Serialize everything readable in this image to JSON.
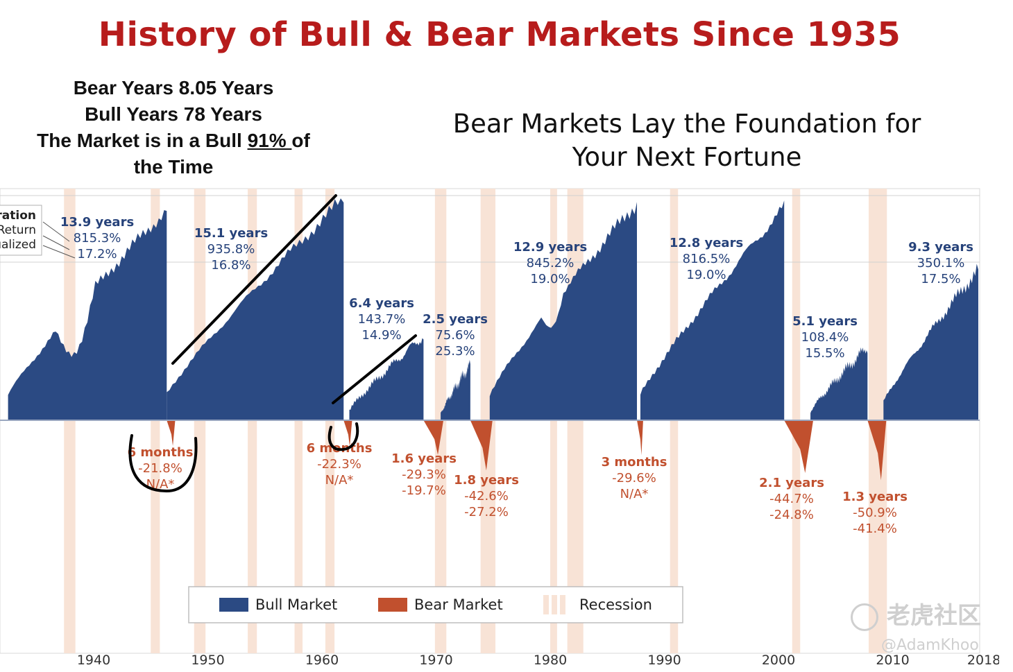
{
  "header": {
    "title": "History of Bull & Bear Markets Since 1935",
    "subtitle_line1": "Bear Markets Lay the Foundation for",
    "subtitle_line2": "Your Next Fortune"
  },
  "stats": {
    "line1": "Bear Years  8.05 Years",
    "line2": "Bull Years 78 Years",
    "line3_prefix": "The Market is in a Bull ",
    "line3_pct": "91% ",
    "line3_suffix": "of",
    "line4": "the Time"
  },
  "watermark": {
    "text": "老虎社区",
    "credit": "@AdamKhoo"
  },
  "colors": {
    "bull": "#2b4a83",
    "bear": "#c1502e",
    "recession": "#f8e3d6",
    "title": "#b71c1c"
  },
  "chart_data": {
    "type": "area",
    "x_ticks": [
      "1940",
      "1950",
      "1960",
      "1970",
      "1980",
      "1990",
      "2000",
      "2010",
      "2018"
    ],
    "key_lines": [
      "uration",
      "Return",
      "ualized"
    ],
    "legend": [
      {
        "label": "Bull Market",
        "color": "#2b4a83"
      },
      {
        "label": "Bear Market",
        "color": "#c1502e"
      },
      {
        "label": "Recession",
        "color": "#f8e3d6"
      }
    ],
    "legend_position": "bottom-center",
    "recessions": [
      [
        1937.4,
        1938.4
      ],
      [
        1945.0,
        1945.8
      ],
      [
        1948.8,
        1949.8
      ],
      [
        1953.5,
        1954.3
      ],
      [
        1957.6,
        1958.3
      ],
      [
        1960.3,
        1961.1
      ],
      [
        1969.9,
        1970.9
      ],
      [
        1973.9,
        1975.2
      ],
      [
        1980.0,
        1980.6
      ],
      [
        1981.5,
        1982.9
      ],
      [
        1990.5,
        1991.2
      ],
      [
        2001.2,
        2001.9
      ],
      [
        2007.9,
        2009.5
      ]
    ],
    "bull_markets": [
      {
        "duration": "13.9 years",
        "return": "815.3%",
        "annualized": "17.2%",
        "start": 1932.5,
        "end": 1946.4,
        "peak": 0.95
      },
      {
        "duration": "15.1 years",
        "return": "935.8%",
        "annualized": "16.8%",
        "start": 1946.4,
        "end": 1961.9,
        "peak": 1.0
      },
      {
        "duration": "6.4 years",
        "return": "143.7%",
        "annualized": "14.9%",
        "start": 1962.4,
        "end": 1968.9,
        "peak": 0.38
      },
      {
        "duration": "2.5 years",
        "return": "75.6%",
        "annualized": "25.3%",
        "start": 1970.4,
        "end": 1973.0,
        "peak": 0.25
      },
      {
        "duration": "12.9 years",
        "return": "845.2%",
        "annualized": "19.0%",
        "start": 1974.7,
        "end": 1987.6,
        "peak": 0.98
      },
      {
        "duration": "12.8 years",
        "return": "816.5%",
        "annualized": "19.0%",
        "start": 1987.9,
        "end": 2000.5,
        "peak": 0.96
      },
      {
        "duration": "5.1 years",
        "return": "108.4%",
        "annualized": "15.5%",
        "start": 2002.8,
        "end": 2007.8,
        "peak": 0.33
      },
      {
        "duration": "9.3 years",
        "return": "350.1%",
        "annualized": "17.5%",
        "start": 2009.2,
        "end": 2018.0,
        "peak": 0.68
      }
    ],
    "bear_markets": [
      {
        "duration": "6 months",
        "decline": "-21.8%",
        "annualized": "N/A*",
        "start": 1946.4,
        "end": 1946.9,
        "depth": -21.8
      },
      {
        "duration": "6 months",
        "decline": "-22.3%",
        "annualized": "N/A*",
        "start": 1961.9,
        "end": 1962.4,
        "depth": -22.3
      },
      {
        "duration": "1.6 years",
        "decline": "-29.3%",
        "annualized": "-19.7%",
        "start": 1968.9,
        "end": 1970.4,
        "depth": -29.3
      },
      {
        "duration": "1.8 years",
        "decline": "-42.6%",
        "annualized": "-27.2%",
        "start": 1973.0,
        "end": 1974.7,
        "depth": -42.6
      },
      {
        "duration": "3 months",
        "decline": "-29.6%",
        "annualized": "N/A*",
        "start": 1987.6,
        "end": 1987.9,
        "depth": -29.6
      },
      {
        "duration": "2.1 years",
        "decline": "-44.7%",
        "annualized": "-24.8%",
        "start": 2000.5,
        "end": 2002.8,
        "depth": -44.7
      },
      {
        "duration": "1.3 years",
        "decline": "-50.9%",
        "annualized": "-41.4%",
        "start": 2007.8,
        "end": 2009.2,
        "depth": -50.9
      }
    ]
  }
}
